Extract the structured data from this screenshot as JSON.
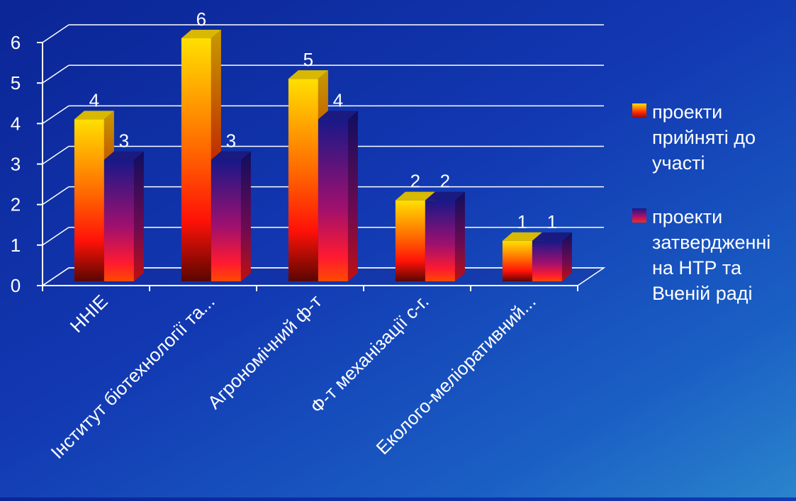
{
  "colors": {
    "background": "#1238b2",
    "axis": "#ffffff",
    "series1_top": "#ffd800",
    "series1_mid": "#ff1010",
    "series1_bottom": "#6a0800",
    "series2_top": "#1a1a8c",
    "series2_mid": "#b0106a",
    "series2_bottom": "#ff3000"
  },
  "chart_data": {
    "type": "bar",
    "style": "3d-clustered-column",
    "categories": [
      "ННІЕ",
      "Інститут біотехнології та...",
      "Агрономічний ф-т",
      "Ф-т механізації с-г.",
      "Еколого-меліоративний..."
    ],
    "series": [
      {
        "name": "проекти прийняті до участі",
        "values": [
          4,
          6,
          5,
          2,
          1
        ]
      },
      {
        "name": "проекти затвердженні на НТР та Вченій раді",
        "values": [
          3,
          3,
          4,
          2,
          1
        ]
      }
    ],
    "y_ticks": [
      "0",
      "1",
      "2",
      "3",
      "4",
      "5",
      "6"
    ],
    "ylim": [
      0,
      6
    ],
    "grid": true,
    "data_labels": true,
    "legend_position": "right"
  },
  "legend": [
    {
      "label": "проекти прийняті до участі"
    },
    {
      "label": "проекти затвердженні на НТР та Вченій раді"
    }
  ]
}
